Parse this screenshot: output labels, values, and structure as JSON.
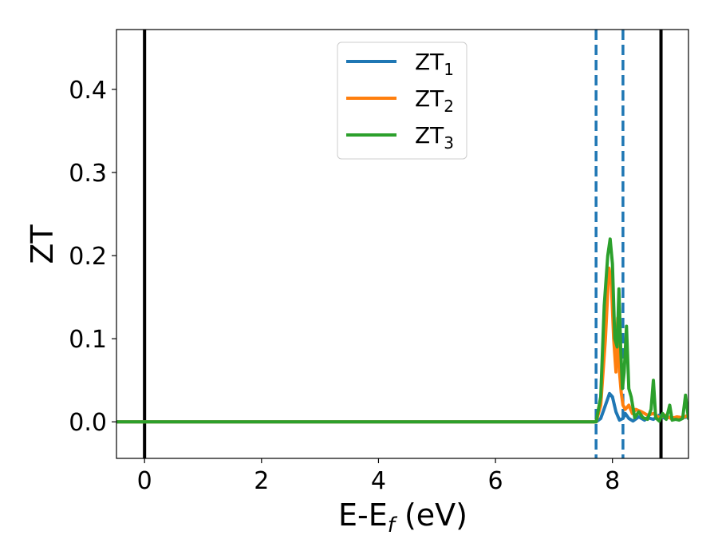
{
  "chart_data": {
    "type": "line",
    "xlabel": "E-E",
    "xlabel_sub": "f",
    "xlabel_unit": " (eV)",
    "ylabel": "ZT",
    "xlim": [
      -0.48,
      9.3
    ],
    "ylim": [
      -0.044,
      0.472
    ],
    "xticks": [
      0,
      2,
      4,
      6,
      8
    ],
    "xtick_labels": [
      "0",
      "2",
      "4",
      "6",
      "8"
    ],
    "yticks": [
      0.0,
      0.1,
      0.2,
      0.3,
      0.4
    ],
    "ytick_labels": [
      "0.0",
      "0.1",
      "0.2",
      "0.3",
      "0.4"
    ],
    "grid": false,
    "legend_position": "top-center",
    "vertical_lines": [
      {
        "x": 0.0,
        "style": "solid",
        "color": "#000000"
      },
      {
        "x": 8.83,
        "style": "solid",
        "color": "#000000"
      },
      {
        "x": 7.72,
        "style": "dashed",
        "color": "#1f77b4"
      },
      {
        "x": 8.18,
        "style": "dashed",
        "color": "#1f77b4"
      }
    ],
    "series": [
      {
        "name": "ZT",
        "subscript": "1",
        "color": "#1f77b4",
        "x": [
          -0.48,
          7.72,
          7.8,
          7.88,
          7.95,
          8.0,
          8.06,
          8.12,
          8.18,
          8.22,
          8.28,
          8.35,
          8.45,
          8.55,
          8.6,
          8.7,
          8.8,
          8.9,
          9.0,
          9.1,
          9.2,
          9.3
        ],
        "y": [
          0.0,
          0.0,
          0.004,
          0.02,
          0.034,
          0.03,
          0.012,
          0.002,
          0.004,
          0.01,
          0.004,
          0.001,
          0.006,
          0.002,
          0.005,
          0.003,
          0.008,
          0.004,
          0.006,
          0.003,
          0.005,
          0.006
        ]
      },
      {
        "name": "ZT",
        "subscript": "2",
        "color": "#ff7f0e",
        "x": [
          -0.48,
          7.72,
          7.8,
          7.88,
          7.94,
          7.98,
          8.02,
          8.06,
          8.09,
          8.12,
          8.15,
          8.18,
          8.22,
          8.28,
          8.34,
          8.4,
          8.5,
          8.6,
          8.7,
          8.8,
          8.9,
          9.0,
          9.1,
          9.2,
          9.3
        ],
        "y": [
          0.0,
          0.0,
          0.02,
          0.1,
          0.185,
          0.17,
          0.1,
          0.06,
          0.125,
          0.06,
          0.035,
          0.02,
          0.015,
          0.02,
          0.01,
          0.015,
          0.012,
          0.008,
          0.01,
          0.005,
          0.008,
          0.004,
          0.006,
          0.005,
          0.008
        ]
      },
      {
        "name": "ZT",
        "subscript": "3",
        "color": "#2ca02c",
        "x": [
          -0.48,
          7.72,
          7.8,
          7.86,
          7.92,
          7.96,
          8.0,
          8.04,
          8.08,
          8.11,
          8.14,
          8.17,
          8.2,
          8.24,
          8.28,
          8.32,
          8.38,
          8.45,
          8.52,
          8.6,
          8.66,
          8.7,
          8.74,
          8.8,
          8.86,
          8.92,
          8.98,
          9.02,
          9.08,
          9.14,
          9.2,
          9.25,
          9.3
        ],
        "y": [
          0.0,
          0.0,
          0.03,
          0.14,
          0.2,
          0.22,
          0.19,
          0.1,
          0.09,
          0.16,
          0.09,
          0.04,
          0.06,
          0.115,
          0.04,
          0.03,
          0.005,
          0.012,
          0.005,
          0.003,
          0.015,
          0.05,
          0.005,
          0.001,
          0.01,
          0.003,
          0.02,
          0.002,
          0.003,
          0.002,
          0.004,
          0.032,
          0.004
        ]
      }
    ]
  }
}
